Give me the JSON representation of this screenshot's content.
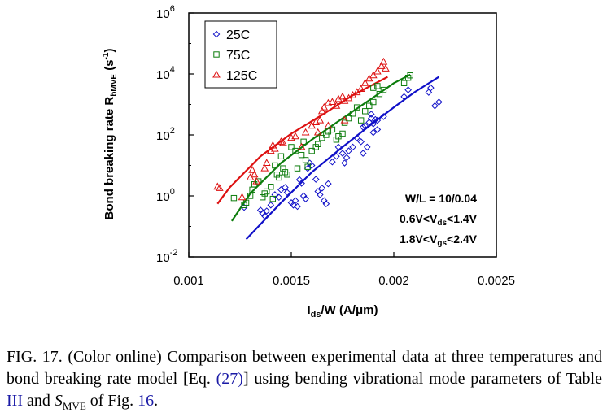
{
  "chart_data": {
    "type": "scatter",
    "x_axis": {
      "label_base": "I",
      "label_sub": "ds",
      "label_rest": "/W (A/μm)",
      "range": [
        0.001,
        0.0025
      ],
      "ticks": [
        0.001,
        0.0015,
        0.002,
        0.0025
      ],
      "tick_labels": [
        "0.001",
        "0.0015",
        "0.002",
        "0.0025"
      ]
    },
    "y_axis": {
      "label_main": "Bond breaking rate R",
      "label_sub": "bMVE",
      "label_unit": " (s",
      "label_unit_sup": "-1",
      "label_close": ")",
      "scale": "log",
      "range": [
        0.01,
        1000000
      ],
      "tick_exponents": [
        -2,
        0,
        2,
        4,
        6
      ],
      "tick_base": "10",
      "tick_sups": [
        "-2",
        "0",
        "2",
        "4",
        "6"
      ]
    },
    "legend_position": "top-left",
    "grid": false,
    "series": [
      {
        "name": "25C",
        "color": "#1010c8",
        "marker": "diamond",
        "points": [
          [
            0.00127,
            0.42
          ],
          [
            0.00135,
            0.34
          ],
          [
            0.00136,
            0.27
          ],
          [
            0.00137,
            0.22
          ],
          [
            0.00138,
            0.32
          ],
          [
            0.0014,
            0.5
          ],
          [
            0.00142,
            1.1
          ],
          [
            0.00144,
            0.9
          ],
          [
            0.00145,
            1.6
          ],
          [
            0.00147,
            1.9
          ],
          [
            0.00148,
            1.3
          ],
          [
            0.0015,
            0.6
          ],
          [
            0.00151,
            0.5
          ],
          [
            0.00152,
            0.7
          ],
          [
            0.00153,
            0.45
          ],
          [
            0.00154,
            3.4
          ],
          [
            0.00155,
            2.6
          ],
          [
            0.00156,
            1.0
          ],
          [
            0.00157,
            0.8
          ],
          [
            0.00158,
            8.0
          ],
          [
            0.00159,
            12
          ],
          [
            0.0016,
            10
          ],
          [
            0.00162,
            3.5
          ],
          [
            0.00163,
            1.4
          ],
          [
            0.00164,
            1.1
          ],
          [
            0.00165,
            1.8
          ],
          [
            0.00166,
            0.7
          ],
          [
            0.00167,
            0.55
          ],
          [
            0.00168,
            2.5
          ],
          [
            0.0017,
            13
          ],
          [
            0.00172,
            20
          ],
          [
            0.00173,
            40
          ],
          [
            0.00175,
            25
          ],
          [
            0.00176,
            12
          ],
          [
            0.00177,
            18
          ],
          [
            0.00178,
            30
          ],
          [
            0.0018,
            40
          ],
          [
            0.00182,
            80
          ],
          [
            0.00184,
            60
          ],
          [
            0.00185,
            180
          ],
          [
            0.00186,
            200
          ],
          [
            0.00188,
            260
          ],
          [
            0.00189,
            350
          ],
          [
            0.0019,
            230
          ],
          [
            0.00191,
            320
          ],
          [
            0.0019,
            120
          ],
          [
            0.00192,
            150
          ],
          [
            0.00195,
            400
          ],
          [
            0.00187,
            40
          ],
          [
            0.00185,
            25
          ],
          [
            0.00189,
            480
          ],
          [
            0.00192,
            300
          ],
          [
            0.00205,
            1800
          ],
          [
            0.00207,
            3000
          ],
          [
            0.00217,
            2500
          ],
          [
            0.0022,
            900
          ],
          [
            0.00222,
            1200
          ],
          [
            0.00218,
            3500
          ]
        ]
      },
      {
        "name": "75C",
        "color": "#0d7d0d",
        "marker": "square",
        "points": [
          [
            0.00122,
            0.85
          ],
          [
            0.00127,
            0.5
          ],
          [
            0.00128,
            0.6
          ],
          [
            0.0013,
            1.0
          ],
          [
            0.00131,
            1.6
          ],
          [
            0.00132,
            2.4
          ],
          [
            0.00134,
            3.0
          ],
          [
            0.00136,
            0.9
          ],
          [
            0.00137,
            1.2
          ],
          [
            0.00138,
            1.4
          ],
          [
            0.0014,
            2.0
          ],
          [
            0.00141,
            0.8
          ],
          [
            0.00142,
            10
          ],
          [
            0.00143,
            5
          ],
          [
            0.00144,
            4
          ],
          [
            0.00145,
            20
          ],
          [
            0.00146,
            8
          ],
          [
            0.00147,
            6
          ],
          [
            0.00148,
            5
          ],
          [
            0.0015,
            40
          ],
          [
            0.00152,
            30
          ],
          [
            0.00153,
            8
          ],
          [
            0.00155,
            22
          ],
          [
            0.00156,
            60
          ],
          [
            0.00157,
            15
          ],
          [
            0.00158,
            9
          ],
          [
            0.0016,
            30
          ],
          [
            0.00162,
            40
          ],
          [
            0.00163,
            50
          ],
          [
            0.00165,
            80
          ],
          [
            0.00167,
            100
          ],
          [
            0.00168,
            130
          ],
          [
            0.0017,
            150
          ],
          [
            0.00172,
            70
          ],
          [
            0.00173,
            90
          ],
          [
            0.00175,
            110
          ],
          [
            0.00176,
            250
          ],
          [
            0.00178,
            350
          ],
          [
            0.0018,
            500
          ],
          [
            0.00182,
            800
          ],
          [
            0.00184,
            300
          ],
          [
            0.00186,
            600
          ],
          [
            0.00188,
            900
          ],
          [
            0.0019,
            1200
          ],
          [
            0.0019,
            3500
          ],
          [
            0.00192,
            4000
          ],
          [
            0.00193,
            2200
          ],
          [
            0.00195,
            3000
          ],
          [
            0.00205,
            5000
          ],
          [
            0.00207,
            7500
          ],
          [
            0.00208,
            9000
          ]
        ]
      },
      {
        "name": "125C",
        "color": "#dd1010",
        "marker": "triangle",
        "points": [
          [
            0.00114,
            2.0
          ],
          [
            0.00115,
            1.8
          ],
          [
            0.00126,
            0.9
          ],
          [
            0.0013,
            4
          ],
          [
            0.00131,
            7
          ],
          [
            0.00132,
            5
          ],
          [
            0.00133,
            3
          ],
          [
            0.00137,
            8
          ],
          [
            0.00138,
            12
          ],
          [
            0.0014,
            30
          ],
          [
            0.00141,
            45
          ],
          [
            0.00142,
            35
          ],
          [
            0.00145,
            60
          ],
          [
            0.00146,
            55
          ],
          [
            0.0015,
            80
          ],
          [
            0.00152,
            90
          ],
          [
            0.00155,
            40
          ],
          [
            0.00157,
            120
          ],
          [
            0.0016,
            200
          ],
          [
            0.00162,
            260
          ],
          [
            0.00164,
            300
          ],
          [
            0.00165,
            600
          ],
          [
            0.00166,
            800
          ],
          [
            0.00168,
            1100
          ],
          [
            0.0017,
            1200
          ],
          [
            0.00172,
            900
          ],
          [
            0.00173,
            1500
          ],
          [
            0.00175,
            1800
          ],
          [
            0.00176,
            1300
          ],
          [
            0.00178,
            1600
          ],
          [
            0.0018,
            2000
          ],
          [
            0.00182,
            2500
          ],
          [
            0.00184,
            3200
          ],
          [
            0.00186,
            5000
          ],
          [
            0.00188,
            7000
          ],
          [
            0.0019,
            9000
          ],
          [
            0.00192,
            12000
          ],
          [
            0.00194,
            18000
          ],
          [
            0.00195,
            25000
          ],
          [
            0.00196,
            15000
          ],
          [
            0.00176,
            300
          ],
          [
            0.00168,
            200
          ],
          [
            0.00163,
            120
          ]
        ]
      }
    ],
    "model_lines": [
      {
        "series": "25C",
        "color": "#1010c8",
        "points": [
          [
            0.00128,
            0.038
          ],
          [
            0.00145,
            0.6
          ],
          [
            0.0016,
            6
          ],
          [
            0.00175,
            40
          ],
          [
            0.0019,
            250
          ],
          [
            0.002,
            800
          ],
          [
            0.0021,
            2500
          ],
          [
            0.00222,
            8000
          ]
        ]
      },
      {
        "series": "75C",
        "color": "#0d7d0d",
        "points": [
          [
            0.00121,
            0.15
          ],
          [
            0.0013,
            1.2
          ],
          [
            0.00145,
            12
          ],
          [
            0.0016,
            70
          ],
          [
            0.00175,
            350
          ],
          [
            0.0019,
            1700
          ],
          [
            0.002,
            5000
          ],
          [
            0.00208,
            9500
          ]
        ]
      },
      {
        "series": "125C",
        "color": "#dd1010",
        "points": [
          [
            0.00114,
            0.55
          ],
          [
            0.0012,
            1.9
          ],
          [
            0.00135,
            20
          ],
          [
            0.0015,
            110
          ],
          [
            0.00165,
            450
          ],
          [
            0.0018,
            2000
          ],
          [
            0.00197,
            8000
          ]
        ]
      }
    ],
    "annotations": [
      {
        "parts": [
          {
            "t": "W/L = 10/0.04"
          }
        ]
      },
      {
        "parts": [
          {
            "t": "0.6V<V"
          },
          {
            "t": "ds",
            "sub": true
          },
          {
            "t": "<1.4V"
          }
        ]
      },
      {
        "parts": [
          {
            "t": "1.8V<V"
          },
          {
            "t": "gs",
            "sub": true
          },
          {
            "t": "<2.4V"
          }
        ]
      }
    ]
  },
  "caption": {
    "p1": "FIG. 17. (Color online) Comparison between experimental data at three temperatures and bond breaking rate model [Eq. ",
    "eq_ref": "(27)",
    "p2": "] using bending vibrational mode parameters of Table ",
    "table_ref": "III",
    "p3": " and ",
    "s_base": "S",
    "s_sub": "MVE",
    "p4": " of Fig. ",
    "fig_ref": "16",
    "p5": "."
  }
}
